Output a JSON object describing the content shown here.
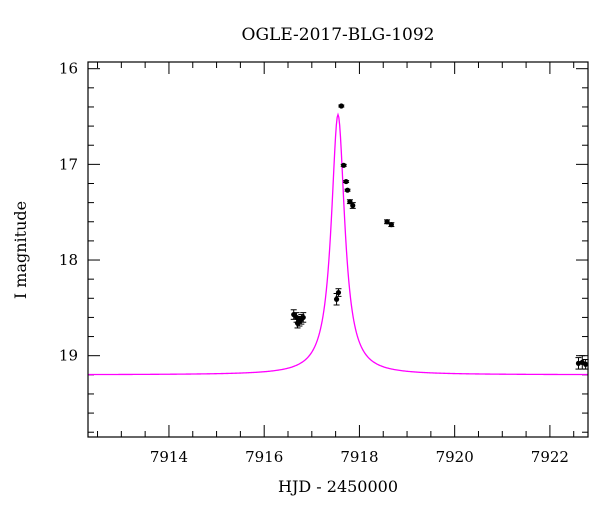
{
  "chart_data": {
    "type": "scatter",
    "title": "OGLE-2017-BLG-1092",
    "xlabel": "HJD - 2450000",
    "ylabel": "I magnitude",
    "xlim": [
      7912.3,
      7922.8
    ],
    "ylim": [
      19.85,
      15.93
    ],
    "y_inverted": true,
    "xticks": [
      7914,
      7916,
      7918,
      7920,
      7922
    ],
    "yticks": [
      16,
      17,
      18,
      19
    ],
    "x_minor_step": 0.5,
    "y_minor_step": 0.2,
    "grid": false,
    "colors": {
      "model": "#ff00ff",
      "points": "#000000"
    },
    "model": {
      "name": "",
      "t0": 7917.55,
      "peak_mag": 16.48,
      "baseline_mag": 19.2,
      "width": 0.17
    },
    "series": [
      {
        "name": "",
        "points": [
          {
            "x": 7916.62,
            "y": 18.57,
            "err": 0.05
          },
          {
            "x": 7916.68,
            "y": 18.6,
            "err": 0.05
          },
          {
            "x": 7916.7,
            "y": 18.66,
            "err": 0.05
          },
          {
            "x": 7916.74,
            "y": 18.64,
            "err": 0.05
          },
          {
            "x": 7916.78,
            "y": 18.62,
            "err": 0.05
          },
          {
            "x": 7916.82,
            "y": 18.6,
            "err": 0.05
          },
          {
            "x": 7917.52,
            "y": 18.41,
            "err": 0.06
          },
          {
            "x": 7917.56,
            "y": 18.34,
            "err": 0.04
          },
          {
            "x": 7917.62,
            "y": 16.39,
            "err": 0.01
          },
          {
            "x": 7917.67,
            "y": 17.01,
            "err": 0.01
          },
          {
            "x": 7917.72,
            "y": 17.18,
            "err": 0.01
          },
          {
            "x": 7917.75,
            "y": 17.27,
            "err": 0.01
          },
          {
            "x": 7917.8,
            "y": 17.39,
            "err": 0.02
          },
          {
            "x": 7917.86,
            "y": 17.43,
            "err": 0.03
          },
          {
            "x": 7918.58,
            "y": 17.6,
            "err": 0.02
          },
          {
            "x": 7918.67,
            "y": 17.63,
            "err": 0.02
          },
          {
            "x": 7922.6,
            "y": 19.08,
            "err": 0.06
          },
          {
            "x": 7922.68,
            "y": 19.07,
            "err": 0.07
          },
          {
            "x": 7922.75,
            "y": 19.09,
            "err": 0.05
          }
        ]
      }
    ]
  }
}
